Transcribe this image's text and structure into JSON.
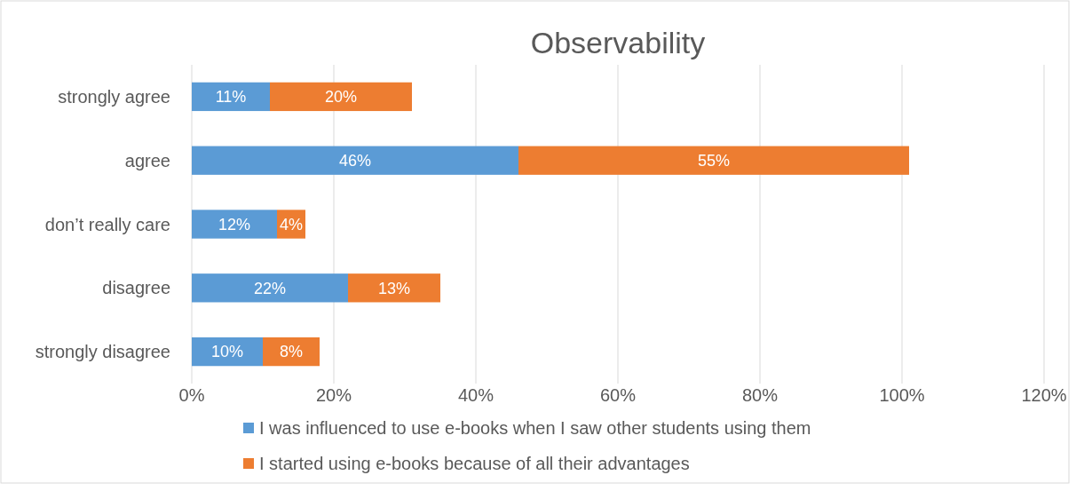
{
  "chart_data": {
    "type": "bar",
    "orientation": "horizontal",
    "stacked": true,
    "title": "Observability",
    "categories": [
      "strongly agree",
      "agree",
      "don’t really care",
      "disagree",
      "strongly disagree"
    ],
    "series": [
      {
        "name": "I was influenced to use e-books when I saw other students using them",
        "color": "#5b9bd5",
        "values": [
          11,
          46,
          12,
          22,
          10
        ],
        "value_labels": [
          "11%",
          "46%",
          "12%",
          "22%",
          "10%"
        ]
      },
      {
        "name": "I started using e-books because of all their advantages",
        "color": "#ed7d31",
        "values": [
          20,
          55,
          4,
          13,
          8
        ],
        "value_labels": [
          "20%",
          "55%",
          "4%",
          "13%",
          "8%"
        ]
      }
    ],
    "xlim": [
      0,
      120
    ],
    "xticks": [
      {
        "value": 0,
        "label": "0%"
      },
      {
        "value": 20,
        "label": "20%"
      },
      {
        "value": 40,
        "label": "40%"
      },
      {
        "value": 60,
        "label": "60%"
      },
      {
        "value": 80,
        "label": "80%"
      },
      {
        "value": 100,
        "label": "100%"
      },
      {
        "value": 120,
        "label": "120%"
      }
    ],
    "grid": "x",
    "legend": "bottom"
  }
}
